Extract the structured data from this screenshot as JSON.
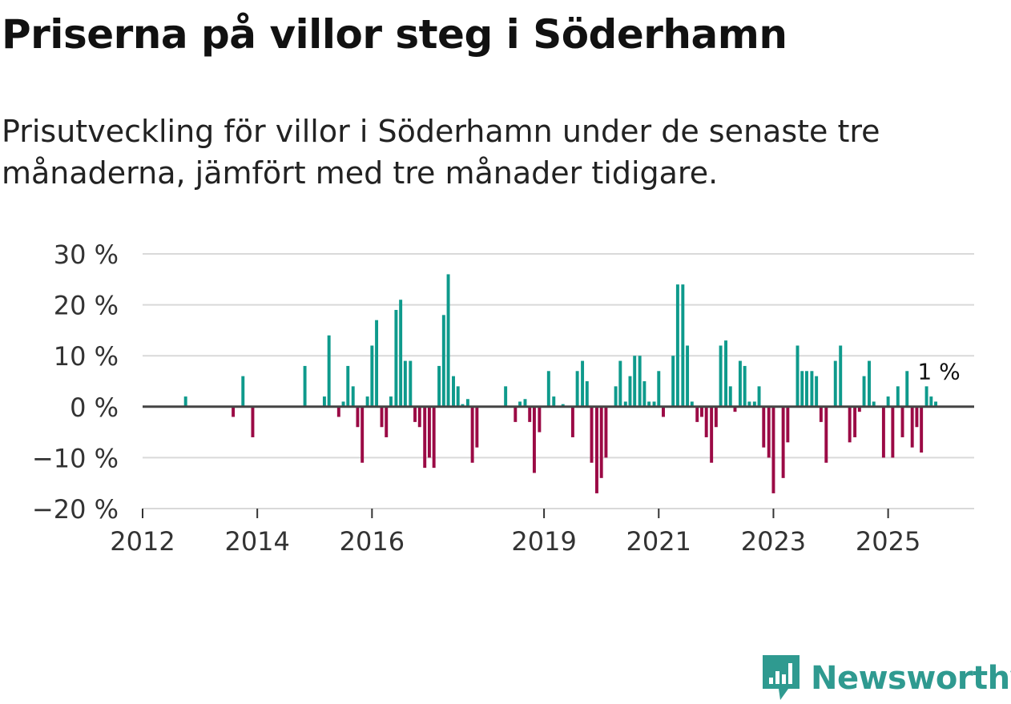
{
  "title": "Priserna på villor steg i Söderhamn",
  "subtitle": "Prisutveckling för villor i Söderhamn under de senaste tre månaderna, jämfört med tre månader tidigare.",
  "brand": {
    "name": "Newsworthy",
    "color": "#2f9a90"
  },
  "colors": {
    "positive": "#0e9a8c",
    "negative": "#9b0a45",
    "grid": "#d9d9d9",
    "zero_line": "#444444",
    "axis_text": "#333333"
  },
  "chart_data": {
    "type": "bar",
    "title": "Priserna på villor steg i Söderhamn",
    "xlabel": "",
    "ylabel": "",
    "ylim": [
      -20,
      30
    ],
    "xlim": [
      2012,
      2026.5
    ],
    "y_ticks": [
      30,
      20,
      10,
      0,
      -10,
      -20
    ],
    "y_tick_labels": [
      "30 %",
      "20 %",
      "10 %",
      "0 %",
      "−10 %",
      "−20 %"
    ],
    "x_ticks": [
      2012,
      2014,
      2016,
      2019,
      2021,
      2023,
      2025
    ],
    "x_tick_labels": [
      "2012",
      "2014",
      "2016",
      "2019",
      "2021",
      "2023",
      "2025"
    ],
    "last_label": "1 %",
    "grid": true,
    "bar_width_years": 0.055,
    "points": [
      [
        2012.75,
        2
      ],
      [
        2013.58,
        -2
      ],
      [
        2013.75,
        6
      ],
      [
        2013.92,
        -6
      ],
      [
        2014.83,
        8
      ],
      [
        2015.17,
        2
      ],
      [
        2015.25,
        14
      ],
      [
        2015.42,
        -2
      ],
      [
        2015.5,
        1
      ],
      [
        2015.58,
        8
      ],
      [
        2015.67,
        4
      ],
      [
        2015.75,
        -4
      ],
      [
        2015.83,
        -11
      ],
      [
        2015.92,
        2
      ],
      [
        2016.0,
        12
      ],
      [
        2016.08,
        17
      ],
      [
        2016.17,
        -4
      ],
      [
        2016.25,
        -6
      ],
      [
        2016.33,
        2
      ],
      [
        2016.42,
        19
      ],
      [
        2016.5,
        21
      ],
      [
        2016.58,
        9
      ],
      [
        2016.67,
        9
      ],
      [
        2016.75,
        -3
      ],
      [
        2016.83,
        -4
      ],
      [
        2016.92,
        -12
      ],
      [
        2017.0,
        -10
      ],
      [
        2017.08,
        -12
      ],
      [
        2017.17,
        8
      ],
      [
        2017.25,
        18
      ],
      [
        2017.33,
        26
      ],
      [
        2017.42,
        6
      ],
      [
        2017.5,
        4
      ],
      [
        2017.58,
        0.5
      ],
      [
        2017.67,
        1.5
      ],
      [
        2017.75,
        -11
      ],
      [
        2017.83,
        -8
      ],
      [
        2018.33,
        4
      ],
      [
        2018.5,
        -3
      ],
      [
        2018.58,
        1
      ],
      [
        2018.67,
        1.5
      ],
      [
        2018.75,
        -3
      ],
      [
        2018.83,
        -13
      ],
      [
        2018.92,
        -5
      ],
      [
        2019.08,
        7
      ],
      [
        2019.17,
        2
      ],
      [
        2019.33,
        0.5
      ],
      [
        2019.5,
        -6
      ],
      [
        2019.58,
        7
      ],
      [
        2019.67,
        9
      ],
      [
        2019.75,
        5
      ],
      [
        2019.83,
        -11
      ],
      [
        2019.92,
        -17
      ],
      [
        2020.0,
        -14
      ],
      [
        2020.08,
        -10
      ],
      [
        2020.25,
        4
      ],
      [
        2020.33,
        9
      ],
      [
        2020.42,
        1
      ],
      [
        2020.5,
        6
      ],
      [
        2020.58,
        10
      ],
      [
        2020.67,
        10
      ],
      [
        2020.75,
        5
      ],
      [
        2020.83,
        1
      ],
      [
        2020.92,
        1
      ],
      [
        2021.0,
        7
      ],
      [
        2021.08,
        -2
      ],
      [
        2021.25,
        10
      ],
      [
        2021.33,
        24
      ],
      [
        2021.42,
        24
      ],
      [
        2021.5,
        12
      ],
      [
        2021.58,
        1
      ],
      [
        2021.67,
        -3
      ],
      [
        2021.75,
        -2
      ],
      [
        2021.83,
        -6
      ],
      [
        2021.92,
        -11
      ],
      [
        2022.0,
        -4
      ],
      [
        2022.08,
        12
      ],
      [
        2022.17,
        13
      ],
      [
        2022.25,
        4
      ],
      [
        2022.33,
        -1
      ],
      [
        2022.42,
        9
      ],
      [
        2022.5,
        8
      ],
      [
        2022.58,
        1
      ],
      [
        2022.67,
        1
      ],
      [
        2022.75,
        4
      ],
      [
        2022.83,
        -8
      ],
      [
        2022.92,
        -10
      ],
      [
        2023.0,
        -17
      ],
      [
        2023.17,
        -14
      ],
      [
        2023.25,
        -7
      ],
      [
        2023.42,
        12
      ],
      [
        2023.5,
        7
      ],
      [
        2023.58,
        7
      ],
      [
        2023.67,
        7
      ],
      [
        2023.75,
        6
      ],
      [
        2023.83,
        -3
      ],
      [
        2023.92,
        -11
      ],
      [
        2024.08,
        9
      ],
      [
        2024.17,
        12
      ],
      [
        2024.33,
        -7
      ],
      [
        2024.42,
        -6
      ],
      [
        2024.5,
        -1
      ],
      [
        2024.58,
        6
      ],
      [
        2024.67,
        9
      ],
      [
        2024.75,
        1
      ],
      [
        2024.92,
        -10
      ],
      [
        2025.0,
        2
      ],
      [
        2025.08,
        -10
      ],
      [
        2025.17,
        4
      ],
      [
        2025.25,
        -6
      ],
      [
        2025.33,
        7
      ],
      [
        2025.42,
        -8
      ],
      [
        2025.5,
        -4
      ],
      [
        2025.58,
        -9
      ],
      [
        2025.67,
        4
      ],
      [
        2025.75,
        2
      ],
      [
        2025.83,
        1
      ]
    ]
  }
}
